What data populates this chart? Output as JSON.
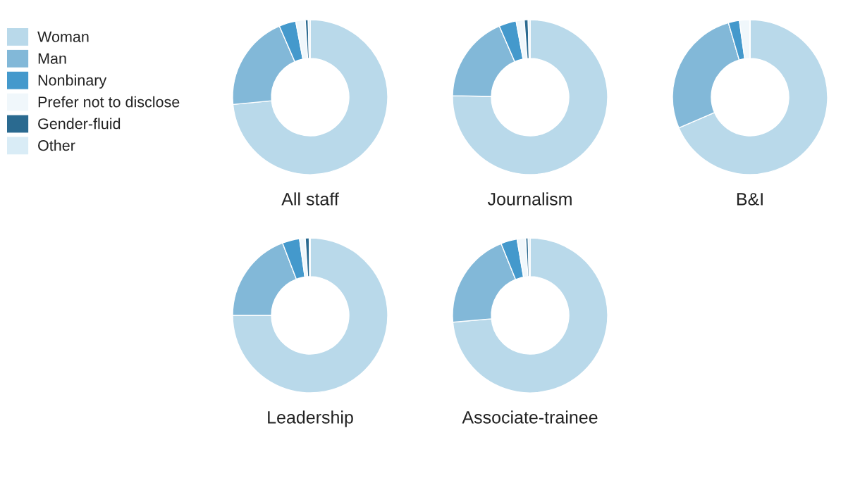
{
  "chart_data": [
    {
      "type": "donut",
      "title": "All staff",
      "legend": "left",
      "categories": [
        "Woman",
        "Man",
        "Nonbinary",
        "Prefer not to disclose",
        "Gender-fluid",
        "Other"
      ],
      "values": [
        73.5,
        20,
        3.5,
        2,
        0.6,
        0.4
      ],
      "colors": [
        "#b9d9ea",
        "#82b8d8",
        "#4499cc",
        "#f0f7fb",
        "#2a6a90",
        "#d9ecf6"
      ]
    },
    {
      "type": "donut",
      "title": "Journalism",
      "values": [
        75.3,
        18.2,
        3.6,
        1.7,
        0.8,
        0.4
      ],
      "colors": [
        "#b9d9ea",
        "#82b8d8",
        "#4499cc",
        "#f0f7fb",
        "#2a6a90",
        "#d9ecf6"
      ]
    },
    {
      "type": "donut",
      "title": "B&I",
      "values": [
        68.5,
        27,
        2.3,
        2.2,
        0,
        0
      ],
      "colors": [
        "#b9d9ea",
        "#82b8d8",
        "#4499cc",
        "#f0f7fb",
        "#2a6a90",
        "#d9ecf6"
      ]
    },
    {
      "type": "donut",
      "title": "Leadership",
      "values": [
        75,
        19.2,
        3.6,
        1.2,
        0.8,
        0.2
      ],
      "colors": [
        "#b9d9ea",
        "#82b8d8",
        "#4499cc",
        "#f0f7fb",
        "#2a6a90",
        "#d9ecf6"
      ]
    },
    {
      "type": "donut",
      "title": "Associate-trainee",
      "values": [
        73.6,
        20.3,
        3.4,
        1.8,
        0.5,
        0.4
      ],
      "colors": [
        "#b9d9ea",
        "#82b8d8",
        "#4499cc",
        "#f0f7fb",
        "#2a6a90",
        "#d9ecf6"
      ]
    }
  ]
}
